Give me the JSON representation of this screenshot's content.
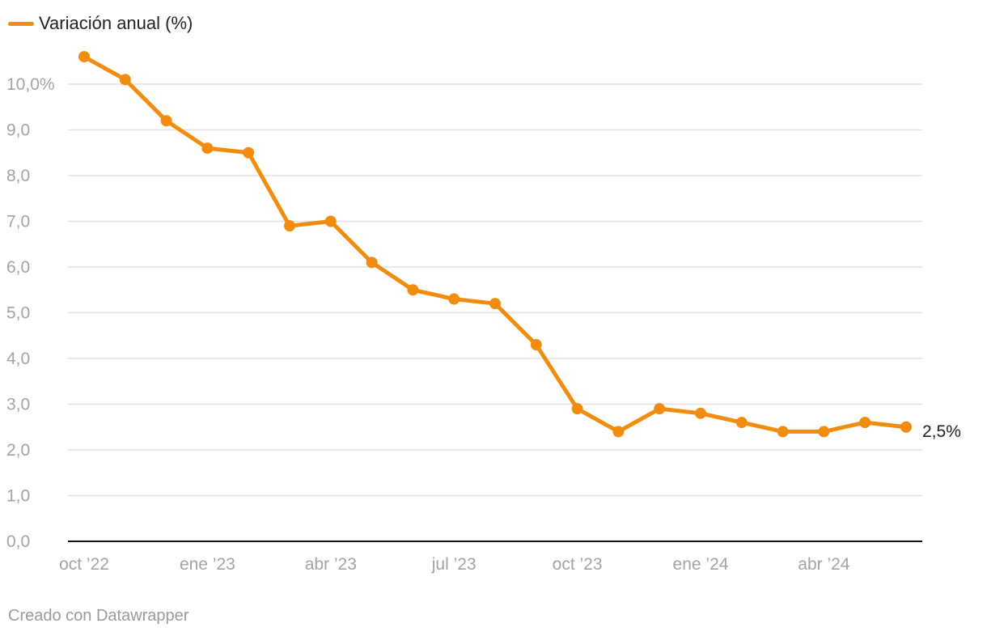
{
  "colors": {
    "series": "#f28c0f",
    "grid": "#e2e2e2",
    "axis": "#111111"
  },
  "legend": {
    "label": "Variación anual (%)"
  },
  "footer": {
    "text": "Creado con Datawrapper"
  },
  "chart_data": {
    "type": "line",
    "title": "",
    "xlabel": "",
    "ylabel": "",
    "ylim": [
      0,
      10
    ],
    "yticks": [
      {
        "value": 0,
        "label": "0,0"
      },
      {
        "value": 1,
        "label": "1,0"
      },
      {
        "value": 2,
        "label": "2,0"
      },
      {
        "value": 3,
        "label": "3,0"
      },
      {
        "value": 4,
        "label": "4,0"
      },
      {
        "value": 5,
        "label": "5,0"
      },
      {
        "value": 6,
        "label": "6,0"
      },
      {
        "value": 7,
        "label": "7,0"
      },
      {
        "value": 8,
        "label": "8,0"
      },
      {
        "value": 9,
        "label": "9,0"
      },
      {
        "value": 10,
        "label": "10,0%"
      }
    ],
    "x": [
      "2022-10",
      "2022-11",
      "2022-12",
      "2023-01",
      "2023-02",
      "2023-03",
      "2023-04",
      "2023-05",
      "2023-06",
      "2023-07",
      "2023-08",
      "2023-09",
      "2023-10",
      "2023-11",
      "2023-12",
      "2024-01",
      "2024-02",
      "2024-03",
      "2024-04",
      "2024-05",
      "2024-06"
    ],
    "xticks": [
      {
        "index": 0,
        "label": "oct ’22"
      },
      {
        "index": 3,
        "label": "ene ’23"
      },
      {
        "index": 6,
        "label": "abr ’23"
      },
      {
        "index": 9,
        "label": "jul ’23"
      },
      {
        "index": 12,
        "label": "oct ’23"
      },
      {
        "index": 15,
        "label": "ene ’24"
      },
      {
        "index": 18,
        "label": "abr ’24"
      }
    ],
    "series": [
      {
        "name": "Variación anual (%)",
        "values": [
          10.6,
          10.1,
          9.2,
          8.6,
          8.5,
          6.9,
          7.0,
          6.1,
          5.5,
          5.3,
          5.2,
          4.3,
          2.9,
          2.4,
          2.9,
          2.8,
          2.6,
          2.4,
          2.4,
          2.6,
          2.5
        ]
      }
    ],
    "end_label": "2,5%",
    "grid": true,
    "legend_position": "top-left"
  }
}
